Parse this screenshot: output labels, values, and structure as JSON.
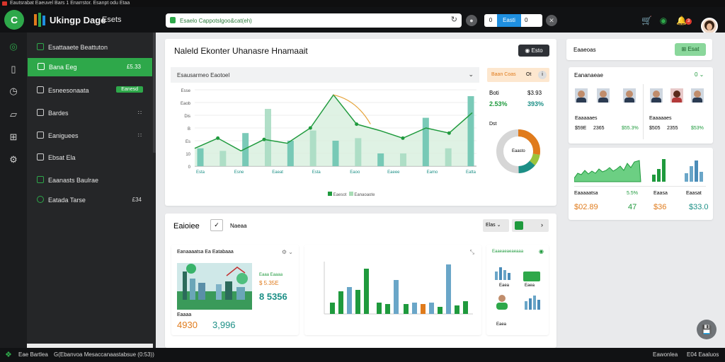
{
  "titlebar": {
    "text": "Eautsrabat Eaeuvel Bars 1 Enarrstor. Esanpt odu Etaa"
  },
  "topbar": {
    "logo_letter": "C",
    "brand": "Ukingp Dage",
    "brand_secondary": "Esets",
    "url_value": "Esaelo Cappotslgoo&cat(eh)",
    "seg_1": "0",
    "seg_2": "Easti",
    "seg_3": "0"
  },
  "sidebar": {
    "items": [
      {
        "label": "Esattaaete Beattuton",
        "right": ""
      },
      {
        "label": "Bana Eeg",
        "right": "£5.33"
      },
      {
        "label": "Esneesonaata",
        "right": ""
      },
      {
        "label": "Bardes",
        "right": "∷"
      },
      {
        "label": "Eaniguees",
        "right": "∷"
      },
      {
        "label": "Ebsat Ela",
        "right": ""
      },
      {
        "label": "Eaanasts Baulrae",
        "right": ""
      },
      {
        "label": "Eatada Tarse",
        "right": "£34"
      }
    ],
    "active_index": 1,
    "pill": "Eanesd"
  },
  "statusbar": {
    "left": "Eae Bartlea",
    "middle": "G(Ebanvoa Mesaccanaastabsue (0:53))",
    "right1": "Eawonlea",
    "right2": "E04 Eaaluos"
  },
  "main": {
    "title": "Naleld Ekonter Uhanasre Hnamaait",
    "title_btn": "Esto",
    "subhead": "Esausarmeo Eaotoel",
    "chart_legend": [
      "Eaesot",
      "Eanaoaote"
    ],
    "kpi_tag": "Baan Coas",
    "kpi_tag_right": "Ot",
    "kpi_label_1": "Boti",
    "kpi_value_1": "$3.93",
    "kpi_label_2": "2.53%",
    "kpi_value_2": "393%",
    "donut_label": "Dst",
    "donut_center": "Eaasto"
  },
  "chart_data": {
    "type": "bar",
    "categories": [
      "Esta",
      "Esne",
      "Eaeat",
      "Esta",
      "Eaoo",
      "Eaeee",
      "Eamo",
      "Eatta"
    ],
    "yticks": [
      "Esse",
      "Eaob",
      "Dis",
      "B",
      "Es",
      "10",
      "0"
    ],
    "bars": [
      14,
      12,
      26,
      45,
      20,
      28,
      20,
      22,
      10,
      10,
      38,
      14,
      55
    ],
    "line": [
      14,
      22,
      12,
      21,
      18,
      30,
      56,
      33,
      28,
      22,
      30,
      26,
      42
    ]
  },
  "sections": {
    "middle_title": "Eaioiee",
    "middle_check": "✓",
    "middle_tab": "Naeaa",
    "filter_label": "Elas",
    "right_title": "Eaaeoas",
    "right_btn": "Esat"
  },
  "people_card": {
    "header": "Eananaeae",
    "stats": [
      {
        "label": "Eaaaaaes",
        "v1": "$59E",
        "v2": "2365",
        "v3": "$55.3%"
      },
      {
        "label": "Eaaaaaes",
        "v1": "$505",
        "v2": "2355",
        "v3": "$53%"
      }
    ]
  },
  "bar_card": {
    "items": [
      {
        "label": "Eaaaaatsa",
        "pct": "5.5%",
        "value": "$02.89"
      },
      {
        "label": "Eaasa",
        "pct": "",
        "value": "$36"
      },
      {
        "label": "Eaasat",
        "pct": "",
        "value": "$33.0"
      }
    ],
    "middle_value": "47"
  },
  "bottom": {
    "card1_title": "Eanaaaatsa Ea Eatabaaa",
    "card1_line1": "Eaaa Eaaaa",
    "card1_line2": "$ 5.35E",
    "card1_big": "8 5356",
    "card1_label": "Eaaaa",
    "card1_v1": "4930",
    "card1_v2": "3,996",
    "card3_title": "Eaaeaeaeaeaaa",
    "card3_label1": "Eaea",
    "card3_label2": "Eaea",
    "card3_label3": "Eaea"
  }
}
